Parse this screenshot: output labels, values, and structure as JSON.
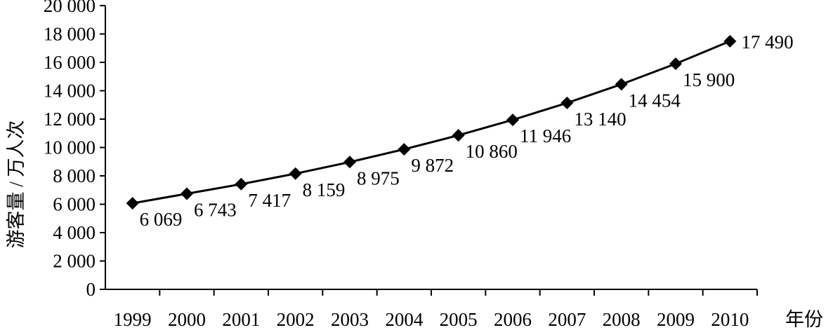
{
  "chart_data": {
    "type": "line",
    "title": "",
    "xlabel": "年份",
    "ylabel": "游客量 / 万人次",
    "categories": [
      "1999",
      "2000",
      "2001",
      "2002",
      "2003",
      "2004",
      "2005",
      "2006",
      "2007",
      "2008",
      "2009",
      "2010"
    ],
    "series": [
      {
        "values": [
          6069,
          6743,
          7417,
          8159,
          8975,
          9872,
          10860,
          11946,
          13140,
          14454,
          15900,
          17490
        ],
        "labels": [
          "6 069",
          "6 743",
          "7 417",
          "8 159",
          "8 975",
          "9 872",
          "10 860",
          "11 946",
          "13 140",
          "14 454",
          "15 900",
          "17 490"
        ]
      }
    ],
    "ylim": [
      0,
      20000
    ],
    "yticks": [
      0,
      2000,
      4000,
      6000,
      8000,
      10000,
      12000,
      14000,
      16000,
      18000,
      20000
    ],
    "ytick_labels": [
      "0",
      "2 000",
      "4 000",
      "6 000",
      "8 000",
      "10 000",
      "12 000",
      "14 000",
      "16 000",
      "18 000",
      "20 000"
    ],
    "grid": false,
    "legend": "none",
    "marker": "diamond",
    "colors": {
      "line": "#000000",
      "axis": "#000000"
    }
  }
}
